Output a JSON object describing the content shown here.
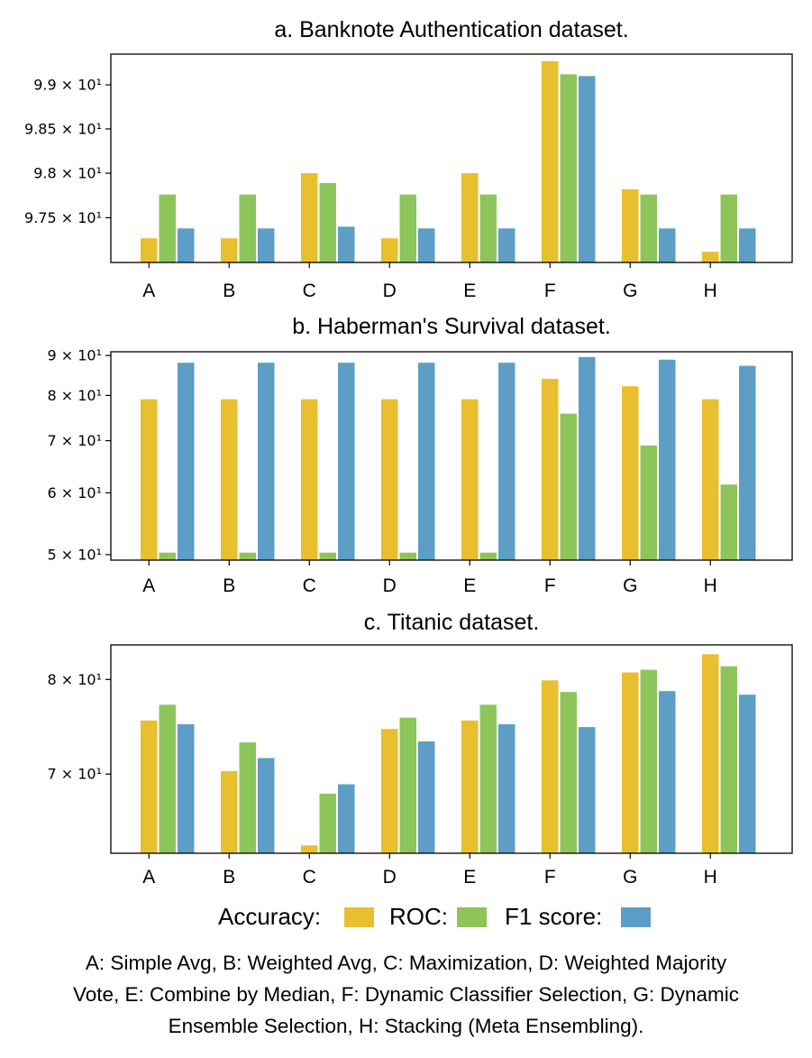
{
  "chart_data": [
    {
      "type": "bar",
      "title": "a. Banknote Authentication dataset.",
      "yscale": "log",
      "categories": [
        "A",
        "B",
        "C",
        "D",
        "E",
        "F",
        "G",
        "H"
      ],
      "ylim": [
        97.0,
        99.35
      ],
      "yticks": [
        97.5,
        98.0,
        98.5,
        99.0
      ],
      "ytick_labels": [
        "9.75 × 10¹",
        "9.8 × 10¹",
        "9.85 × 10¹",
        "9.9 × 10¹"
      ],
      "series": [
        {
          "name": "Accuracy",
          "color": "#e8bf2e",
          "values": [
            97.27,
            97.27,
            98.0,
            97.27,
            98.0,
            99.27,
            97.82,
            97.12
          ]
        },
        {
          "name": "ROC",
          "color": "#8dc55b",
          "values": [
            97.76,
            97.76,
            97.89,
            97.76,
            97.76,
            99.12,
            97.76,
            97.76
          ]
        },
        {
          "name": "F1 score",
          "color": "#5d9ec7",
          "values": [
            97.38,
            97.38,
            97.4,
            97.38,
            97.38,
            99.1,
            97.38,
            97.38
          ]
        }
      ]
    },
    {
      "type": "bar",
      "title": "b. Haberman's Survival dataset.",
      "yscale": "log",
      "categories": [
        "A",
        "B",
        "C",
        "D",
        "E",
        "F",
        "G",
        "H"
      ],
      "ylim": [
        49.2,
        91.0
      ],
      "yticks": [
        50,
        60,
        70,
        80,
        90
      ],
      "ytick_labels": [
        "5 × 10¹",
        "6 × 10¹",
        "7 × 10¹",
        "8 × 10¹",
        "9 × 10¹"
      ],
      "series": [
        {
          "name": "Accuracy",
          "color": "#e8bf2e",
          "values": [
            79.1,
            79.1,
            79.1,
            79.1,
            79.1,
            84.0,
            82.2,
            79.1
          ]
        },
        {
          "name": "ROC",
          "color": "#8dc55b",
          "values": [
            50.3,
            50.3,
            50.3,
            50.3,
            50.3,
            75.8,
            69.0,
            61.5
          ]
        },
        {
          "name": "F1 score",
          "color": "#5d9ec7",
          "values": [
            88.1,
            88.1,
            88.1,
            88.1,
            88.1,
            89.6,
            88.9,
            87.3
          ]
        }
      ]
    },
    {
      "type": "bar",
      "title": "c. Titanic dataset.",
      "yscale": "log",
      "categories": [
        "A",
        "B",
        "C",
        "D",
        "E",
        "F",
        "G",
        "H"
      ],
      "ylim": [
        62.6,
        84.0
      ],
      "yticks": [
        70,
        80
      ],
      "ytick_labels": [
        "7 × 10¹",
        "8 × 10¹"
      ],
      "series": [
        {
          "name": "Accuracy",
          "color": "#e8bf2e",
          "values": [
            75.5,
            70.3,
            63.3,
            74.6,
            75.5,
            79.9,
            80.8,
            82.9
          ]
        },
        {
          "name": "ROC",
          "color": "#8dc55b",
          "values": [
            77.2,
            73.2,
            68.1,
            75.8,
            77.2,
            78.6,
            81.1,
            81.5
          ]
        },
        {
          "name": "F1 score",
          "color": "#5d9ec7",
          "values": [
            75.1,
            71.6,
            69.0,
            73.3,
            75.1,
            74.8,
            78.7,
            78.3
          ]
        }
      ]
    }
  ],
  "legend": [
    {
      "label": "Accuracy:",
      "color": "#e8bf2e"
    },
    {
      "label": "ROC:",
      "color": "#8dc55b"
    },
    {
      "label": "F1 score:",
      "color": "#5d9ec7"
    }
  ],
  "caption": {
    "line1": "A: Simple Avg, B: Weighted Avg, C: Maximization, D: Weighted Majority",
    "line2": "Vote, E: Combine by Median, F: Dynamic Classifier Selection, G: Dynamic",
    "line3": "Ensemble Selection, H: Stacking (Meta Ensembling)."
  }
}
